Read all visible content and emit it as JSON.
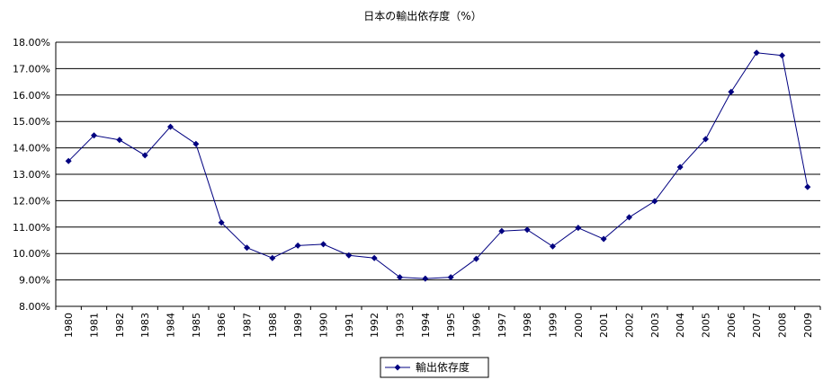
{
  "chart_data": {
    "type": "line",
    "title": "日本の輸出依存度（%）",
    "xlabel": "",
    "ylabel": "",
    "categories": [
      "1980",
      "1981",
      "1982",
      "1983",
      "1984",
      "1985",
      "1986",
      "1987",
      "1988",
      "1989",
      "1990",
      "1991",
      "1992",
      "1993",
      "1994",
      "1995",
      "1996",
      "1997",
      "1998",
      "1999",
      "2000",
      "2001",
      "2002",
      "2003",
      "2004",
      "2005",
      "2006",
      "2007",
      "2008",
      "2009"
    ],
    "series": [
      {
        "name": "輸出依存度",
        "color": "#000080",
        "values": [
          13.5,
          14.47,
          14.3,
          13.72,
          14.8,
          14.15,
          11.17,
          10.22,
          9.83,
          10.3,
          10.35,
          9.93,
          9.83,
          9.1,
          9.05,
          9.1,
          9.8,
          10.85,
          10.9,
          10.27,
          10.97,
          10.55,
          11.37,
          11.98,
          13.27,
          14.33,
          16.12,
          17.6,
          17.5,
          12.52
        ]
      }
    ],
    "ylim": [
      8,
      18
    ],
    "yticks": [
      "8.00%",
      "9.00%",
      "10.00%",
      "11.00%",
      "12.00%",
      "13.00%",
      "14.00%",
      "15.00%",
      "16.00%",
      "17.00%",
      "18.00%"
    ],
    "grid": true,
    "legend_position": "bottom"
  }
}
